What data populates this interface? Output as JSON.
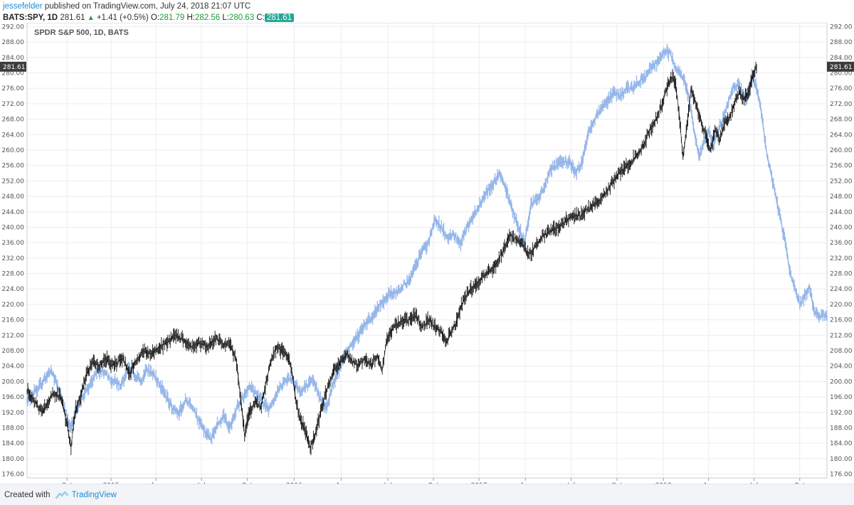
{
  "header": {
    "author": "jessefelder",
    "published_text": " published on TradingView.com, July 24, 2018 21:07 UTC",
    "symbol_text": "BATS:SPY, 1D",
    "last_price": "281.61",
    "change_text": "+1.41 (+0.5%)",
    "open_label": "O:",
    "open_value": "281.79",
    "high_label": "H:",
    "high_value": "282.56",
    "low_label": "L:",
    "low_value": "280.63",
    "close_label": "C:",
    "close_value": "281.61"
  },
  "footer": {
    "created_with": "Created with",
    "brand": "TradingView"
  },
  "colors": {
    "primary_series": "#111111",
    "overlay_series": "#8fb2e8",
    "grid": "#ecedf0",
    "price_tag_bg": "#3c3c3c",
    "logo": "#8fd0e8"
  },
  "chart_data": {
    "type": "line",
    "title": "SPDR S&P 500, 1D, BATS",
    "ylim": [
      175,
      293
    ],
    "y_ticks": [
      "176.00",
      "180.00",
      "184.00",
      "188.00",
      "192.00",
      "196.00",
      "200.00",
      "204.00",
      "208.00",
      "212.00",
      "216.00",
      "220.00",
      "224.00",
      "228.00",
      "232.00",
      "236.00",
      "240.00",
      "244.00",
      "248.00",
      "252.00",
      "256.00",
      "260.00",
      "264.00",
      "268.00",
      "272.00",
      "276.00",
      "280.00",
      "284.00",
      "288.00",
      "292.00"
    ],
    "current_price_tag": "281.61",
    "x_ticks": [
      {
        "label": "Oct",
        "t": 0.05
      },
      {
        "label": "2015",
        "t": 0.105
      },
      {
        "label": "Apr",
        "t": 0.1612
      },
      {
        "label": "Jul",
        "t": 0.218
      },
      {
        "label": "Oct",
        "t": 0.2752
      },
      {
        "label": "2016",
        "t": 0.334
      },
      {
        "label": "Apr",
        "t": 0.3927
      },
      {
        "label": "Jul",
        "t": 0.451
      },
      {
        "label": "Oct",
        "t": 0.508
      },
      {
        "label": "2017",
        "t": 0.565
      },
      {
        "label": "Apr",
        "t": 0.623
      },
      {
        "label": "Jul",
        "t": 0.6802
      },
      {
        "label": "Oct",
        "t": 0.7375
      },
      {
        "label": "2018",
        "t": 0.7955
      },
      {
        "label": "Apr",
        "t": 0.852
      },
      {
        "label": "Jul",
        "t": 0.909
      },
      {
        "label": "Oct",
        "t": 0.966
      }
    ],
    "series": [
      {
        "role": "primary",
        "points": [
          [
            0.0,
            198
          ],
          [
            0.012,
            194
          ],
          [
            0.02,
            192
          ],
          [
            0.032,
            197
          ],
          [
            0.042,
            196
          ],
          [
            0.05,
            189
          ],
          [
            0.055,
            183
          ],
          [
            0.06,
            192
          ],
          [
            0.068,
            197
          ],
          [
            0.075,
            202
          ],
          [
            0.082,
            205
          ],
          [
            0.09,
            204
          ],
          [
            0.098,
            206
          ],
          [
            0.105,
            204
          ],
          [
            0.112,
            205
          ],
          [
            0.12,
            206
          ],
          [
            0.128,
            202
          ],
          [
            0.135,
            205
          ],
          [
            0.145,
            208
          ],
          [
            0.155,
            207
          ],
          [
            0.165,
            209
          ],
          [
            0.175,
            210
          ],
          [
            0.185,
            212
          ],
          [
            0.195,
            211
          ],
          [
            0.205,
            209
          ],
          [
            0.215,
            210
          ],
          [
            0.225,
            209
          ],
          [
            0.235,
            211
          ],
          [
            0.245,
            210
          ],
          [
            0.255,
            209
          ],
          [
            0.262,
            205
          ],
          [
            0.268,
            194
          ],
          [
            0.272,
            186
          ],
          [
            0.278,
            192
          ],
          [
            0.285,
            195
          ],
          [
            0.292,
            193
          ],
          [
            0.3,
            201
          ],
          [
            0.306,
            206
          ],
          [
            0.312,
            209
          ],
          [
            0.318,
            208
          ],
          [
            0.325,
            207
          ],
          [
            0.331,
            203
          ],
          [
            0.336,
            195
          ],
          [
            0.342,
            190
          ],
          [
            0.348,
            187
          ],
          [
            0.354,
            183
          ],
          [
            0.36,
            186
          ],
          [
            0.366,
            191
          ],
          [
            0.372,
            196
          ],
          [
            0.378,
            200
          ],
          [
            0.384,
            203
          ],
          [
            0.392,
            205
          ],
          [
            0.4,
            207
          ],
          [
            0.408,
            205
          ],
          [
            0.415,
            204
          ],
          [
            0.422,
            206
          ],
          [
            0.43,
            204
          ],
          [
            0.438,
            207
          ],
          [
            0.444,
            203
          ],
          [
            0.449,
            210
          ],
          [
            0.455,
            213
          ],
          [
            0.462,
            215
          ],
          [
            0.47,
            216
          ],
          [
            0.478,
            216
          ],
          [
            0.486,
            217
          ],
          [
            0.494,
            214
          ],
          [
            0.502,
            216
          ],
          [
            0.51,
            214
          ],
          [
            0.518,
            213
          ],
          [
            0.524,
            210
          ],
          [
            0.53,
            213
          ],
          [
            0.536,
            215
          ],
          [
            0.542,
            219
          ],
          [
            0.548,
            222
          ],
          [
            0.556,
            224
          ],
          [
            0.565,
            226
          ],
          [
            0.575,
            228
          ],
          [
            0.585,
            230
          ],
          [
            0.595,
            234
          ],
          [
            0.603,
            238
          ],
          [
            0.61,
            237
          ],
          [
            0.617,
            236
          ],
          [
            0.624,
            234
          ],
          [
            0.63,
            233
          ],
          [
            0.638,
            236
          ],
          [
            0.646,
            238
          ],
          [
            0.655,
            239
          ],
          [
            0.665,
            240
          ],
          [
            0.675,
            242
          ],
          [
            0.685,
            243
          ],
          [
            0.693,
            243
          ],
          [
            0.701,
            245
          ],
          [
            0.71,
            246
          ],
          [
            0.72,
            248
          ],
          [
            0.73,
            251
          ],
          [
            0.74,
            254
          ],
          [
            0.75,
            256
          ],
          [
            0.76,
            258
          ],
          [
            0.77,
            261
          ],
          [
            0.778,
            265
          ],
          [
            0.786,
            268
          ],
          [
            0.794,
            272
          ],
          [
            0.8,
            276
          ],
          [
            0.805,
            279
          ],
          [
            0.81,
            278
          ],
          [
            0.815,
            270
          ],
          [
            0.82,
            258
          ],
          [
            0.825,
            266
          ],
          [
            0.83,
            276
          ],
          [
            0.836,
            272
          ],
          [
            0.842,
            268
          ],
          [
            0.848,
            264
          ],
          [
            0.854,
            260
          ],
          [
            0.86,
            265
          ],
          [
            0.866,
            263
          ],
          [
            0.872,
            267
          ],
          [
            0.878,
            268
          ],
          [
            0.884,
            272
          ],
          [
            0.89,
            275
          ],
          [
            0.896,
            273
          ],
          [
            0.902,
            275
          ],
          [
            0.908,
            280
          ],
          [
            0.912,
            281.6
          ]
        ]
      },
      {
        "role": "overlay",
        "points": [
          [
            0.0,
            195
          ],
          [
            0.012,
            198
          ],
          [
            0.02,
            200
          ],
          [
            0.03,
            203
          ],
          [
            0.04,
            198
          ],
          [
            0.048,
            192
          ],
          [
            0.055,
            188
          ],
          [
            0.062,
            193
          ],
          [
            0.07,
            196
          ],
          [
            0.078,
            199
          ],
          [
            0.086,
            202
          ],
          [
            0.094,
            203
          ],
          [
            0.102,
            201
          ],
          [
            0.11,
            200
          ],
          [
            0.118,
            199
          ],
          [
            0.126,
            203
          ],
          [
            0.134,
            202
          ],
          [
            0.142,
            200
          ],
          [
            0.15,
            203
          ],
          [
            0.158,
            202
          ],
          [
            0.166,
            199
          ],
          [
            0.174,
            196
          ],
          [
            0.182,
            193
          ],
          [
            0.19,
            192
          ],
          [
            0.198,
            195
          ],
          [
            0.206,
            194
          ],
          [
            0.214,
            190
          ],
          [
            0.222,
            187
          ],
          [
            0.23,
            185
          ],
          [
            0.238,
            189
          ],
          [
            0.246,
            191
          ],
          [
            0.254,
            188
          ],
          [
            0.262,
            193
          ],
          [
            0.27,
            196
          ],
          [
            0.278,
            199
          ],
          [
            0.286,
            197
          ],
          [
            0.294,
            195
          ],
          [
            0.302,
            193
          ],
          [
            0.31,
            196
          ],
          [
            0.318,
            199
          ],
          [
            0.326,
            201
          ],
          [
            0.334,
            200
          ],
          [
            0.342,
            197
          ],
          [
            0.35,
            199
          ],
          [
            0.358,
            200
          ],
          [
            0.366,
            196
          ],
          [
            0.374,
            193
          ],
          [
            0.382,
            199
          ],
          [
            0.39,
            203
          ],
          [
            0.398,
            207
          ],
          [
            0.406,
            210
          ],
          [
            0.414,
            212
          ],
          [
            0.422,
            215
          ],
          [
            0.43,
            216
          ],
          [
            0.438,
            219
          ],
          [
            0.446,
            221
          ],
          [
            0.454,
            223
          ],
          [
            0.462,
            223
          ],
          [
            0.47,
            225
          ],
          [
            0.478,
            226
          ],
          [
            0.486,
            230
          ],
          [
            0.494,
            234
          ],
          [
            0.502,
            236
          ],
          [
            0.51,
            242
          ],
          [
            0.518,
            240
          ],
          [
            0.526,
            237
          ],
          [
            0.534,
            238
          ],
          [
            0.542,
            236
          ],
          [
            0.55,
            240
          ],
          [
            0.558,
            243
          ],
          [
            0.566,
            246
          ],
          [
            0.574,
            249
          ],
          [
            0.582,
            251
          ],
          [
            0.59,
            254
          ],
          [
            0.598,
            250
          ],
          [
            0.606,
            245
          ],
          [
            0.614,
            240
          ],
          [
            0.622,
            236
          ],
          [
            0.63,
            246
          ],
          [
            0.638,
            247
          ],
          [
            0.646,
            250
          ],
          [
            0.654,
            255
          ],
          [
            0.662,
            256
          ],
          [
            0.67,
            257
          ],
          [
            0.678,
            257
          ],
          [
            0.686,
            254
          ],
          [
            0.694,
            257
          ],
          [
            0.702,
            265
          ],
          [
            0.71,
            268
          ],
          [
            0.718,
            271
          ],
          [
            0.726,
            273
          ],
          [
            0.734,
            275
          ],
          [
            0.742,
            274
          ],
          [
            0.75,
            276
          ],
          [
            0.758,
            276
          ],
          [
            0.766,
            278
          ],
          [
            0.774,
            279
          ],
          [
            0.782,
            282
          ],
          [
            0.79,
            283
          ],
          [
            0.798,
            286
          ],
          [
            0.804,
            285
          ],
          [
            0.81,
            282
          ],
          [
            0.816,
            280
          ],
          [
            0.822,
            278
          ],
          [
            0.828,
            273
          ],
          [
            0.834,
            265
          ],
          [
            0.84,
            258
          ],
          [
            0.846,
            262
          ],
          [
            0.852,
            265
          ],
          [
            0.858,
            261
          ],
          [
            0.864,
            265
          ],
          [
            0.87,
            268
          ],
          [
            0.876,
            272
          ],
          [
            0.882,
            276
          ],
          [
            0.888,
            277
          ],
          [
            0.894,
            275
          ],
          [
            0.9,
            273
          ],
          [
            0.906,
            279
          ],
          [
            0.912,
            276
          ],
          [
            0.918,
            270
          ],
          [
            0.924,
            260
          ],
          [
            0.93,
            254
          ],
          [
            0.936,
            248
          ],
          [
            0.942,
            242
          ],
          [
            0.948,
            236
          ],
          [
            0.954,
            228
          ],
          [
            0.96,
            224
          ],
          [
            0.966,
            220
          ],
          [
            0.972,
            222
          ],
          [
            0.978,
            225
          ],
          [
            0.984,
            218
          ],
          [
            0.99,
            217
          ],
          [
            1.0,
            217
          ]
        ]
      }
    ]
  }
}
